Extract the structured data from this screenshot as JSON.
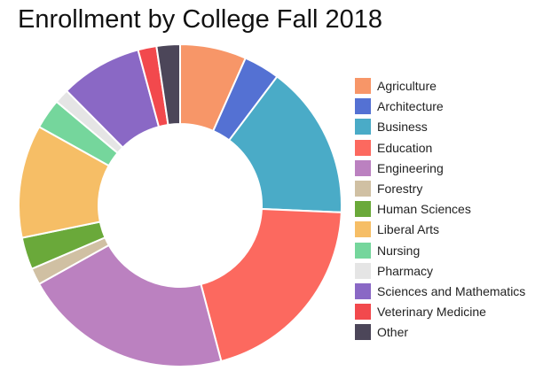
{
  "chart_data": {
    "type": "pie",
    "title": "Enrollment by College Fall 2018",
    "donut": true,
    "legend_position": "right",
    "categories": [
      "Agriculture",
      "Architecture",
      "Business",
      "Education",
      "Engineering",
      "Forestry",
      "Human Sciences",
      "Liberal Arts",
      "Nursing",
      "Pharmacy",
      "Sciences and Mathematics",
      "Veterinary Medicine",
      "Other"
    ],
    "values": [
      6.8,
      3.7,
      15.8,
      20.7,
      21.5,
      1.7,
      3.3,
      11.6,
      3.1,
      1.5,
      8.4,
      1.9,
      2.4
    ],
    "colors": [
      "#f79668",
      "#5471d3",
      "#4aabc7",
      "#fc695f",
      "#bb81c0",
      "#d0c0a3",
      "#6aa93a",
      "#f6be66",
      "#75d69c",
      "#e5e5e5",
      "#8a68c5",
      "#f2494d",
      "#4c4659"
    ]
  }
}
